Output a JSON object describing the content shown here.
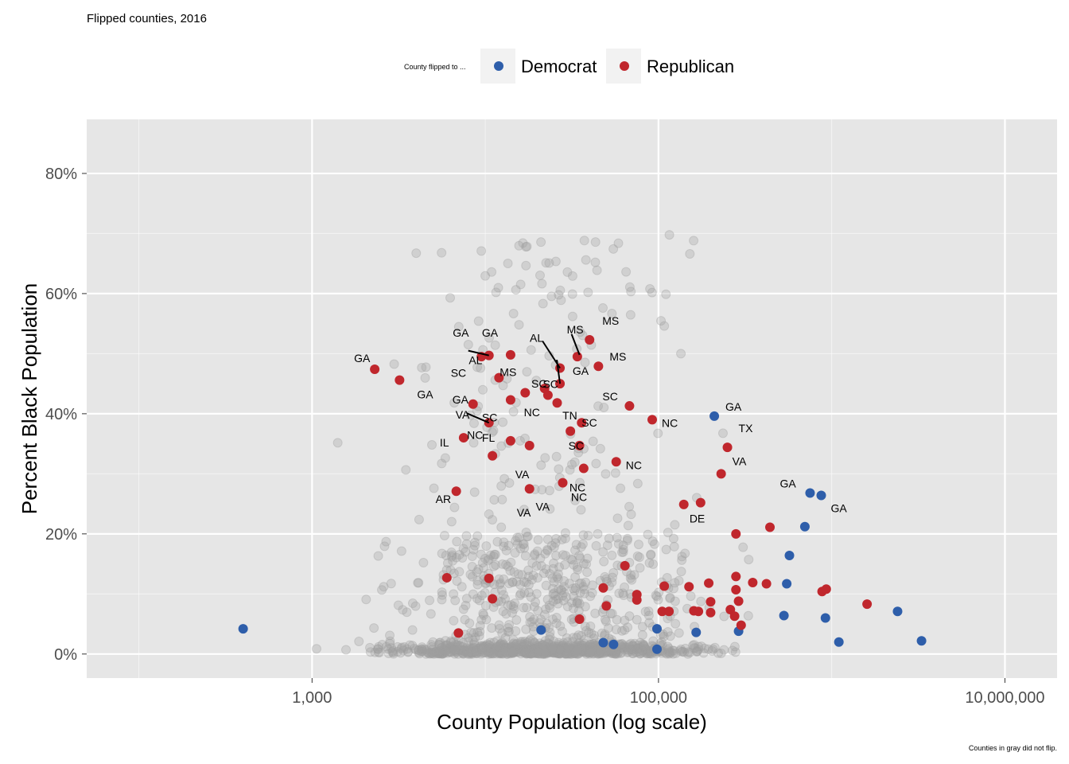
{
  "chart_data": {
    "type": "scatter",
    "title": "Flipped counties, 2016",
    "xlabel": "County Population (log scale)",
    "ylabel": "Percent Black Population",
    "x_scale": "log10",
    "xlim": [
      50,
      20000000
    ],
    "ylim": [
      -0.04,
      0.89
    ],
    "x_ticks": [
      {
        "value": 1000,
        "label": "1,000"
      },
      {
        "value": 100000,
        "label": "100,000"
      },
      {
        "value": 10000000,
        "label": "10,000,000"
      }
    ],
    "y_ticks": [
      {
        "value": 0,
        "label": "0%"
      },
      {
        "value": 0.2,
        "label": "20%"
      },
      {
        "value": 0.4,
        "label": "40%"
      },
      {
        "value": 0.6,
        "label": "60%"
      },
      {
        "value": 0.8,
        "label": "80%"
      }
    ],
    "grid": true,
    "legend": {
      "placement": "top",
      "title": "County flipped to ...",
      "entries": [
        {
          "name": "Democrat",
          "color": "#2E5EAA"
        },
        {
          "name": "Republican",
          "color": "#C0272D"
        }
      ]
    },
    "caption": "Counties in gray did not flip.",
    "colors": {
      "panel": "#E6E6E6",
      "grid_major": "#FFFFFF",
      "background_points": "#9E9E9E"
    },
    "series": [
      {
        "name": "Democrat",
        "color": "#2E5EAA",
        "points": [
          [
            400,
            0.042
          ],
          [
            21000,
            0.04
          ],
          [
            48000,
            0.019
          ],
          [
            55000,
            0.016
          ],
          [
            98000,
            0.042
          ],
          [
            98000,
            0.008
          ],
          [
            165000,
            0.036
          ],
          [
            210000,
            0.396
          ],
          [
            290000,
            0.038
          ],
          [
            530000,
            0.064
          ],
          [
            550000,
            0.117
          ],
          [
            570000,
            0.164
          ],
          [
            700000,
            0.212
          ],
          [
            750000,
            0.268
          ],
          [
            870000,
            0.264
          ],
          [
            920000,
            0.06
          ],
          [
            1100000,
            0.02
          ],
          [
            2400000,
            0.071
          ],
          [
            3300000,
            0.022
          ]
        ]
      },
      {
        "name": "Republican",
        "color": "#C0272D",
        "points": [
          [
            2300,
            0.474
          ],
          [
            3200,
            0.456
          ],
          [
            6000,
            0.127
          ],
          [
            7000,
            0.035
          ],
          [
            6800,
            0.271
          ],
          [
            7500,
            0.36
          ],
          [
            8500,
            0.416
          ],
          [
            9500,
            0.495
          ],
          [
            10500,
            0.497
          ],
          [
            10500,
            0.385
          ],
          [
            11000,
            0.33
          ],
          [
            10500,
            0.126
          ],
          [
            11000,
            0.092
          ],
          [
            12000,
            0.46
          ],
          [
            14000,
            0.355
          ],
          [
            14000,
            0.423
          ],
          [
            14000,
            0.498
          ],
          [
            17000,
            0.435
          ],
          [
            18000,
            0.347
          ],
          [
            18000,
            0.275
          ],
          [
            22000,
            0.442
          ],
          [
            23000,
            0.431
          ],
          [
            26000,
            0.418
          ],
          [
            27000,
            0.476
          ],
          [
            27000,
            0.45
          ],
          [
            28000,
            0.285
          ],
          [
            31000,
            0.371
          ],
          [
            34000,
            0.495
          ],
          [
            35000,
            0.347
          ],
          [
            35000,
            0.058
          ],
          [
            36000,
            0.385
          ],
          [
            37000,
            0.309
          ],
          [
            40000,
            0.523
          ],
          [
            45000,
            0.479
          ],
          [
            48000,
            0.11
          ],
          [
            50000,
            0.08
          ],
          [
            57000,
            0.32
          ],
          [
            64000,
            0.147
          ],
          [
            68000,
            0.413
          ],
          [
            75000,
            0.099
          ],
          [
            75000,
            0.09
          ],
          [
            92000,
            0.39
          ],
          [
            105000,
            0.071
          ],
          [
            108000,
            0.113
          ],
          [
            115000,
            0.071
          ],
          [
            140000,
            0.249
          ],
          [
            150000,
            0.112
          ],
          [
            160000,
            0.072
          ],
          [
            170000,
            0.071
          ],
          [
            175000,
            0.252
          ],
          [
            195000,
            0.118
          ],
          [
            200000,
            0.087
          ],
          [
            200000,
            0.069
          ],
          [
            230000,
            0.3
          ],
          [
            250000,
            0.344
          ],
          [
            260000,
            0.074
          ],
          [
            275000,
            0.063
          ],
          [
            280000,
            0.129
          ],
          [
            280000,
            0.107
          ],
          [
            280000,
            0.2
          ],
          [
            290000,
            0.088
          ],
          [
            300000,
            0.048
          ],
          [
            350000,
            0.119
          ],
          [
            420000,
            0.117
          ],
          [
            440000,
            0.211
          ],
          [
            880000,
            0.104
          ],
          [
            930000,
            0.108
          ],
          [
            1600000,
            0.083
          ]
        ]
      }
    ],
    "annotations": [
      {
        "text": "GA",
        "x": 2300,
        "y": 0.474
      },
      {
        "text": "GA",
        "x": 3200,
        "y": 0.456
      },
      {
        "text": "IL",
        "x": 7500,
        "y": 0.36
      },
      {
        "text": "AR",
        "x": 6800,
        "y": 0.271
      },
      {
        "text": "GA",
        "x": 8500,
        "y": 0.416
      },
      {
        "text": "GA",
        "x": 9500,
        "y": 0.495
      },
      {
        "text": "SC",
        "x": 10500,
        "y": 0.497
      },
      {
        "text": "VA",
        "x": 10500,
        "y": 0.385
      },
      {
        "text": "NC",
        "x": 11000,
        "y": 0.33
      },
      {
        "text": "AL",
        "x": 12000,
        "y": 0.46
      },
      {
        "text": "FL",
        "x": 14000,
        "y": 0.355
      },
      {
        "text": "SC",
        "x": 14000,
        "y": 0.423
      },
      {
        "text": "GA",
        "x": 14000,
        "y": 0.498
      },
      {
        "text": "VA",
        "x": 18000,
        "y": 0.275
      },
      {
        "text": "VA",
        "x": 18000,
        "y": 0.347
      },
      {
        "text": "MS",
        "x": 17000,
        "y": 0.435
      },
      {
        "text": "NC",
        "x": 22000,
        "y": 0.442
      },
      {
        "text": "SC",
        "x": 26000,
        "y": 0.418
      },
      {
        "text": "AL",
        "x": 27000,
        "y": 0.476
      },
      {
        "text": "SC",
        "x": 27000,
        "y": 0.45
      },
      {
        "text": "VA",
        "x": 28000,
        "y": 0.285
      },
      {
        "text": "TN",
        "x": 31000,
        "y": 0.371
      },
      {
        "text": "GA",
        "x": 34000,
        "y": 0.495
      },
      {
        "text": "MS",
        "x": 35000,
        "y": 0.498
      },
      {
        "text": "SC",
        "x": 35000,
        "y": 0.347
      },
      {
        "text": "SC",
        "x": 36000,
        "y": 0.385
      },
      {
        "text": "NC",
        "x": 37000,
        "y": 0.309
      },
      {
        "text": "NC",
        "x": 37000,
        "y": 0.285
      },
      {
        "text": "MS",
        "x": 40000,
        "y": 0.523
      },
      {
        "text": "MS",
        "x": 45000,
        "y": 0.479
      },
      {
        "text": "NC",
        "x": 57000,
        "y": 0.32
      },
      {
        "text": "SC",
        "x": 68000,
        "y": 0.413
      },
      {
        "text": "NC",
        "x": 92000,
        "y": 0.39
      },
      {
        "text": "GA",
        "x": 210000,
        "y": 0.396
      },
      {
        "text": "TX",
        "x": 250000,
        "y": 0.344
      },
      {
        "text": "VA",
        "x": 230000,
        "y": 0.3
      },
      {
        "text": "DE",
        "x": 175000,
        "y": 0.252
      },
      {
        "text": "GA",
        "x": 750000,
        "y": 0.268
      },
      {
        "text": "GA",
        "x": 870000,
        "y": 0.264
      }
    ]
  }
}
